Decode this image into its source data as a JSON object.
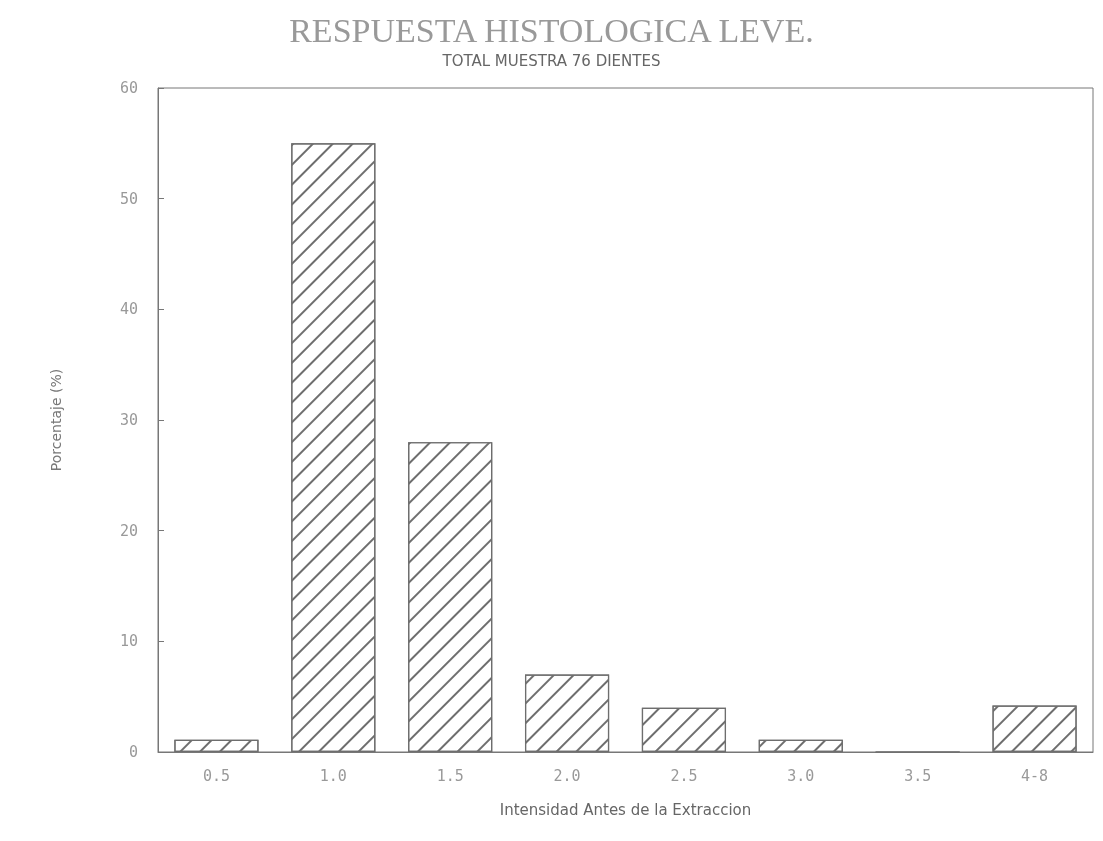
{
  "chart_data": {
    "type": "bar",
    "title": "RESPUESTA HISTOLOGICA LEVE.",
    "subtitle": "TOTAL MUESTRA 76 DIENTES",
    "xlabel": "Intensidad Antes de la Extraccion",
    "ylabel": "Porcentaje (%)",
    "categories": [
      "0.5",
      "1.0",
      "1.5",
      "2.0",
      "2.5",
      "3.0",
      "3.5",
      "4-8"
    ],
    "values": [
      1.1,
      55,
      28,
      7,
      4,
      1.1,
      0,
      4.2
    ],
    "color": "#6e6e6e",
    "ylim": [
      0,
      60
    ],
    "yticks": [
      0,
      10,
      20,
      30,
      40,
      50,
      60
    ],
    "grid": false
  }
}
